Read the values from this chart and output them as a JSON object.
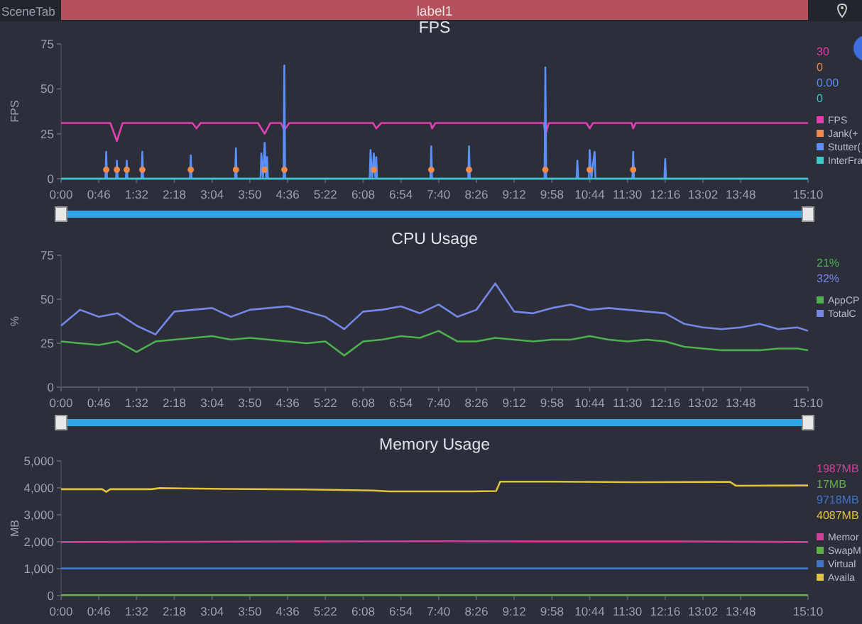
{
  "chart_data": [
    {
      "type": "line",
      "title": "FPS",
      "ylabel": "FPS",
      "xlim": [
        0,
        910
      ],
      "ylim": [
        0,
        75
      ],
      "yticks": [
        0,
        25,
        50,
        75
      ],
      "xticks": [
        {
          "value": 0,
          "label": "0:00"
        },
        {
          "value": 46,
          "label": "0:46"
        },
        {
          "value": 92,
          "label": "1:32"
        },
        {
          "value": 138,
          "label": "2:18"
        },
        {
          "value": 184,
          "label": "3:04"
        },
        {
          "value": 230,
          "label": "3:50"
        },
        {
          "value": 276,
          "label": "4:36"
        },
        {
          "value": 322,
          "label": "5:22"
        },
        {
          "value": 368,
          "label": "6:08"
        },
        {
          "value": 414,
          "label": "6:54"
        },
        {
          "value": 460,
          "label": "7:40"
        },
        {
          "value": 506,
          "label": "8:26"
        },
        {
          "value": 552,
          "label": "9:12"
        },
        {
          "value": 598,
          "label": "9:58"
        },
        {
          "value": 644,
          "label": "10:44"
        },
        {
          "value": 690,
          "label": "11:30"
        },
        {
          "value": 736,
          "label": "12:16"
        },
        {
          "value": 782,
          "label": "13:02"
        },
        {
          "value": 828,
          "label": "13:48"
        },
        {
          "value": 910,
          "label": "15:10"
        }
      ],
      "legend": "right",
      "annotations": [
        "30",
        "0",
        "0.00",
        "0",
        "SceneTab",
        "label1"
      ],
      "series": [
        {
          "name": "FPS",
          "color": "#e040b0",
          "x": [
            0,
            60,
            68,
            75,
            160,
            165,
            170,
            240,
            248,
            255,
            268,
            272,
            278,
            380,
            384,
            390,
            450,
            452,
            456,
            588,
            590,
            594,
            640,
            644,
            648,
            695,
            697,
            700,
            910
          ],
          "values": [
            31,
            31,
            21,
            31,
            31,
            28,
            31,
            31,
            25,
            31,
            31,
            27,
            31,
            31,
            28,
            31,
            31,
            28,
            31,
            31,
            24,
            31,
            31,
            28,
            31,
            31,
            28,
            31,
            31
          ]
        },
        {
          "name": "Jank(+",
          "color": "#f08a4b",
          "type": "scatter",
          "marker": "circle",
          "x": [
            55,
            68,
            80,
            99,
            158,
            213,
            248,
            272,
            381,
            451,
            497,
            590,
            644,
            697
          ],
          "values": [
            5,
            5,
            5,
            5,
            5,
            5,
            5,
            5,
            5,
            5,
            5,
            5,
            5,
            5
          ]
        },
        {
          "name": "Stutter(",
          "color": "#5b8ff9",
          "x": [
            0,
            54,
            55,
            56,
            67,
            68,
            69,
            79,
            80,
            81,
            98,
            99,
            100,
            157,
            158,
            159,
            212,
            213,
            214,
            243,
            244,
            246,
            248,
            250,
            251,
            252,
            271,
            272,
            273,
            376,
            377,
            379,
            381,
            383,
            384,
            385,
            450,
            451,
            452,
            496,
            497,
            498,
            589,
            590,
            591,
            628,
            629,
            630,
            643,
            644,
            646,
            650,
            651,
            696,
            697,
            698,
            735,
            736,
            737,
            910
          ],
          "values": [
            0,
            0,
            15,
            0,
            0,
            10,
            0,
            0,
            10,
            0,
            0,
            15,
            0,
            0,
            13,
            0,
            0,
            17,
            0,
            0,
            14,
            0,
            20,
            0,
            12,
            0,
            0,
            63,
            0,
            0,
            16,
            0,
            14,
            0,
            12,
            0,
            0,
            18,
            0,
            0,
            18,
            0,
            0,
            62,
            0,
            0,
            10,
            0,
            0,
            16,
            0,
            15,
            0,
            0,
            15,
            0,
            0,
            11,
            0,
            0
          ]
        },
        {
          "name": "InterFra",
          "color": "#3cc8c8",
          "x": [
            0,
            910
          ],
          "values": [
            0,
            0
          ]
        }
      ]
    },
    {
      "type": "line",
      "title": "CPU Usage",
      "ylabel": "%",
      "xlim": [
        0,
        910
      ],
      "ylim": [
        0,
        75
      ],
      "yticks": [
        0,
        25,
        50,
        75
      ],
      "xticks": [
        {
          "value": 0,
          "label": "0:00"
        },
        {
          "value": 46,
          "label": "0:46"
        },
        {
          "value": 92,
          "label": "1:32"
        },
        {
          "value": 138,
          "label": "2:18"
        },
        {
          "value": 184,
          "label": "3:04"
        },
        {
          "value": 230,
          "label": "3:50"
        },
        {
          "value": 276,
          "label": "4:36"
        },
        {
          "value": 322,
          "label": "5:22"
        },
        {
          "value": 368,
          "label": "6:08"
        },
        {
          "value": 414,
          "label": "6:54"
        },
        {
          "value": 460,
          "label": "7:40"
        },
        {
          "value": 506,
          "label": "8:26"
        },
        {
          "value": 552,
          "label": "9:12"
        },
        {
          "value": 598,
          "label": "9:58"
        },
        {
          "value": 644,
          "label": "10:44"
        },
        {
          "value": 690,
          "label": "11:30"
        },
        {
          "value": 736,
          "label": "12:16"
        },
        {
          "value": 782,
          "label": "13:02"
        },
        {
          "value": 828,
          "label": "13:48"
        },
        {
          "value": 910,
          "label": "15:10"
        }
      ],
      "legend": "right",
      "annotations": [
        "21%",
        "32%"
      ],
      "x": [
        0,
        23,
        46,
        69,
        92,
        115,
        138,
        161,
        184,
        207,
        230,
        253,
        276,
        299,
        322,
        345,
        368,
        391,
        414,
        437,
        460,
        483,
        506,
        529,
        552,
        575,
        598,
        621,
        644,
        667,
        690,
        713,
        736,
        759,
        782,
        805,
        828,
        851,
        874,
        897,
        910
      ],
      "series": [
        {
          "name": "AppCP",
          "color": "#4caf50",
          "values": [
            26,
            25,
            24,
            26,
            20,
            26,
            27,
            28,
            29,
            27,
            28,
            27,
            26,
            25,
            26,
            18,
            26,
            27,
            29,
            28,
            32,
            26,
            26,
            28,
            27,
            26,
            27,
            27,
            29,
            27,
            26,
            27,
            26,
            23,
            22,
            21,
            21,
            21,
            22,
            22,
            21
          ]
        },
        {
          "name": "TotalC",
          "color": "#7486e6",
          "values": [
            35,
            44,
            40,
            42,
            35,
            30,
            43,
            44,
            45,
            40,
            44,
            45,
            46,
            43,
            40,
            33,
            43,
            44,
            46,
            42,
            47,
            40,
            44,
            59,
            43,
            42,
            45,
            47,
            44,
            45,
            44,
            43,
            42,
            36,
            34,
            33,
            34,
            36,
            33,
            34,
            32
          ]
        }
      ]
    },
    {
      "type": "line",
      "title": "Memory Usage",
      "ylabel": "MB",
      "xlim": [
        0,
        910
      ],
      "ylim": [
        0,
        5000
      ],
      "yticks": [
        0,
        {
          "value": 1000,
          "label": "1,000"
        },
        {
          "value": 2000,
          "label": "2,000"
        },
        {
          "value": 3000,
          "label": "3,000"
        },
        {
          "value": 4000,
          "label": "4,000"
        },
        {
          "value": 5000,
          "label": "5,000"
        }
      ],
      "xticks": [
        {
          "value": 0,
          "label": "0:00"
        },
        {
          "value": 46,
          "label": "0:46"
        },
        {
          "value": 92,
          "label": "1:32"
        },
        {
          "value": 138,
          "label": "2:18"
        },
        {
          "value": 184,
          "label": "3:04"
        },
        {
          "value": 230,
          "label": "3:50"
        },
        {
          "value": 276,
          "label": "4:36"
        },
        {
          "value": 322,
          "label": "5:22"
        },
        {
          "value": 368,
          "label": "6:08"
        },
        {
          "value": 414,
          "label": "6:54"
        },
        {
          "value": 460,
          "label": "7:40"
        },
        {
          "value": 506,
          "label": "8:26"
        },
        {
          "value": 552,
          "label": "9:12"
        },
        {
          "value": 598,
          "label": "9:58"
        },
        {
          "value": 644,
          "label": "10:44"
        },
        {
          "value": 690,
          "label": "11:30"
        },
        {
          "value": 736,
          "label": "12:16"
        },
        {
          "value": 782,
          "label": "13:02"
        },
        {
          "value": 828,
          "label": "13:48"
        },
        {
          "value": 910,
          "label": "15:10"
        }
      ],
      "legend": "right",
      "annotations": [
        "1987MB",
        "17MB",
        "9718MB",
        "4087MB"
      ],
      "series": [
        {
          "name": "Memor",
          "color": "#d0409a",
          "x": [
            0,
            150,
            300,
            450,
            600,
            750,
            910
          ],
          "values": [
            1990,
            2000,
            2010,
            2020,
            2010,
            2010,
            1990
          ]
        },
        {
          "name": "SwapM",
          "color": "#5fb043",
          "x": [
            0,
            910
          ],
          "values": [
            20,
            20
          ]
        },
        {
          "name": "Virtual",
          "color": "#3f74c8",
          "x": [
            0,
            910
          ],
          "values": [
            1010,
            1010
          ]
        },
        {
          "name": "Availa",
          "color": "#e0c23c",
          "x": [
            0,
            50,
            55,
            60,
            110,
            120,
            200,
            300,
            380,
            400,
            500,
            530,
            535,
            600,
            700,
            815,
            822,
            910
          ],
          "values": [
            3950,
            3950,
            3850,
            3950,
            3950,
            3990,
            3960,
            3940,
            3900,
            3870,
            3870,
            3880,
            4230,
            4230,
            4210,
            4220,
            4080,
            4090
          ]
        }
      ]
    }
  ]
}
